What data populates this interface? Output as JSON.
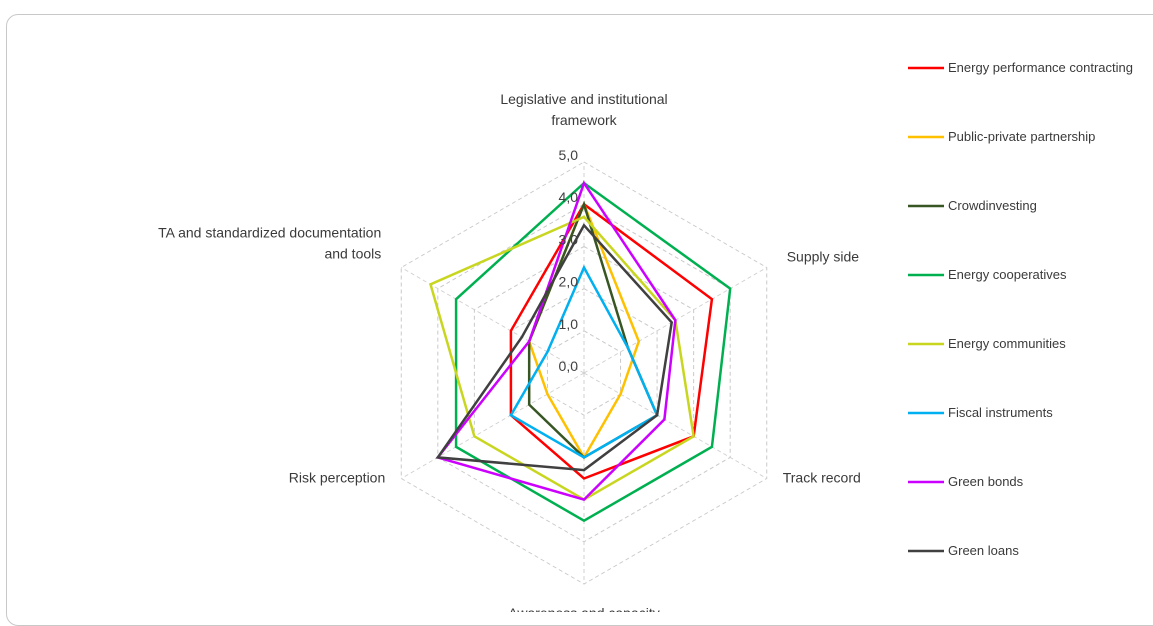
{
  "chart_data": {
    "type": "radar",
    "axes": [
      [
        "Legislative and institutional",
        "framework"
      ],
      [
        "Supply side"
      ],
      [
        "Track record"
      ],
      [
        "Awareness and capacity"
      ],
      [
        "Risk perception"
      ],
      [
        "TA and standardized documentation",
        "and tools"
      ]
    ],
    "ticks": [
      "0,0",
      "1,0",
      "2,0",
      "3,0",
      "4,0",
      "5,0"
    ],
    "rmax": 5,
    "grid": true,
    "legend_position": "right",
    "series": [
      {
        "name": "Energy performance contracting",
        "color": "#ff0000",
        "values": [
          4.0,
          3.5,
          3.0,
          2.5,
          2.0,
          2.0
        ]
      },
      {
        "name": "Public-private partnership",
        "color": "#ffc000",
        "values": [
          4.0,
          1.5,
          1.0,
          2.0,
          1.0,
          1.5
        ]
      },
      {
        "name": "Crowdinvesting",
        "color": "#375623",
        "values": [
          4.0,
          1.2,
          2.0,
          2.0,
          1.5,
          1.5
        ]
      },
      {
        "name": "Energy cooperatives",
        "color": "#00b050",
        "values": [
          4.5,
          4.0,
          3.5,
          3.5,
          3.5,
          3.5
        ]
      },
      {
        "name": "Energy communities",
        "color": "#c9d61f",
        "values": [
          3.7,
          2.5,
          3.0,
          3.0,
          3.0,
          4.2
        ]
      },
      {
        "name": "Fiscal instruments",
        "color": "#00b0f0",
        "values": [
          2.5,
          1.2,
          2.0,
          2.0,
          2.0,
          1.0
        ]
      },
      {
        "name": "Green bonds",
        "color": "#cc00ff",
        "values": [
          4.5,
          2.5,
          2.2,
          3.0,
          4.0,
          1.5
        ]
      },
      {
        "name": "Green loans",
        "color": "#404040",
        "values": [
          3.5,
          2.4,
          2.0,
          2.3,
          4.0,
          1.7
        ]
      }
    ]
  }
}
